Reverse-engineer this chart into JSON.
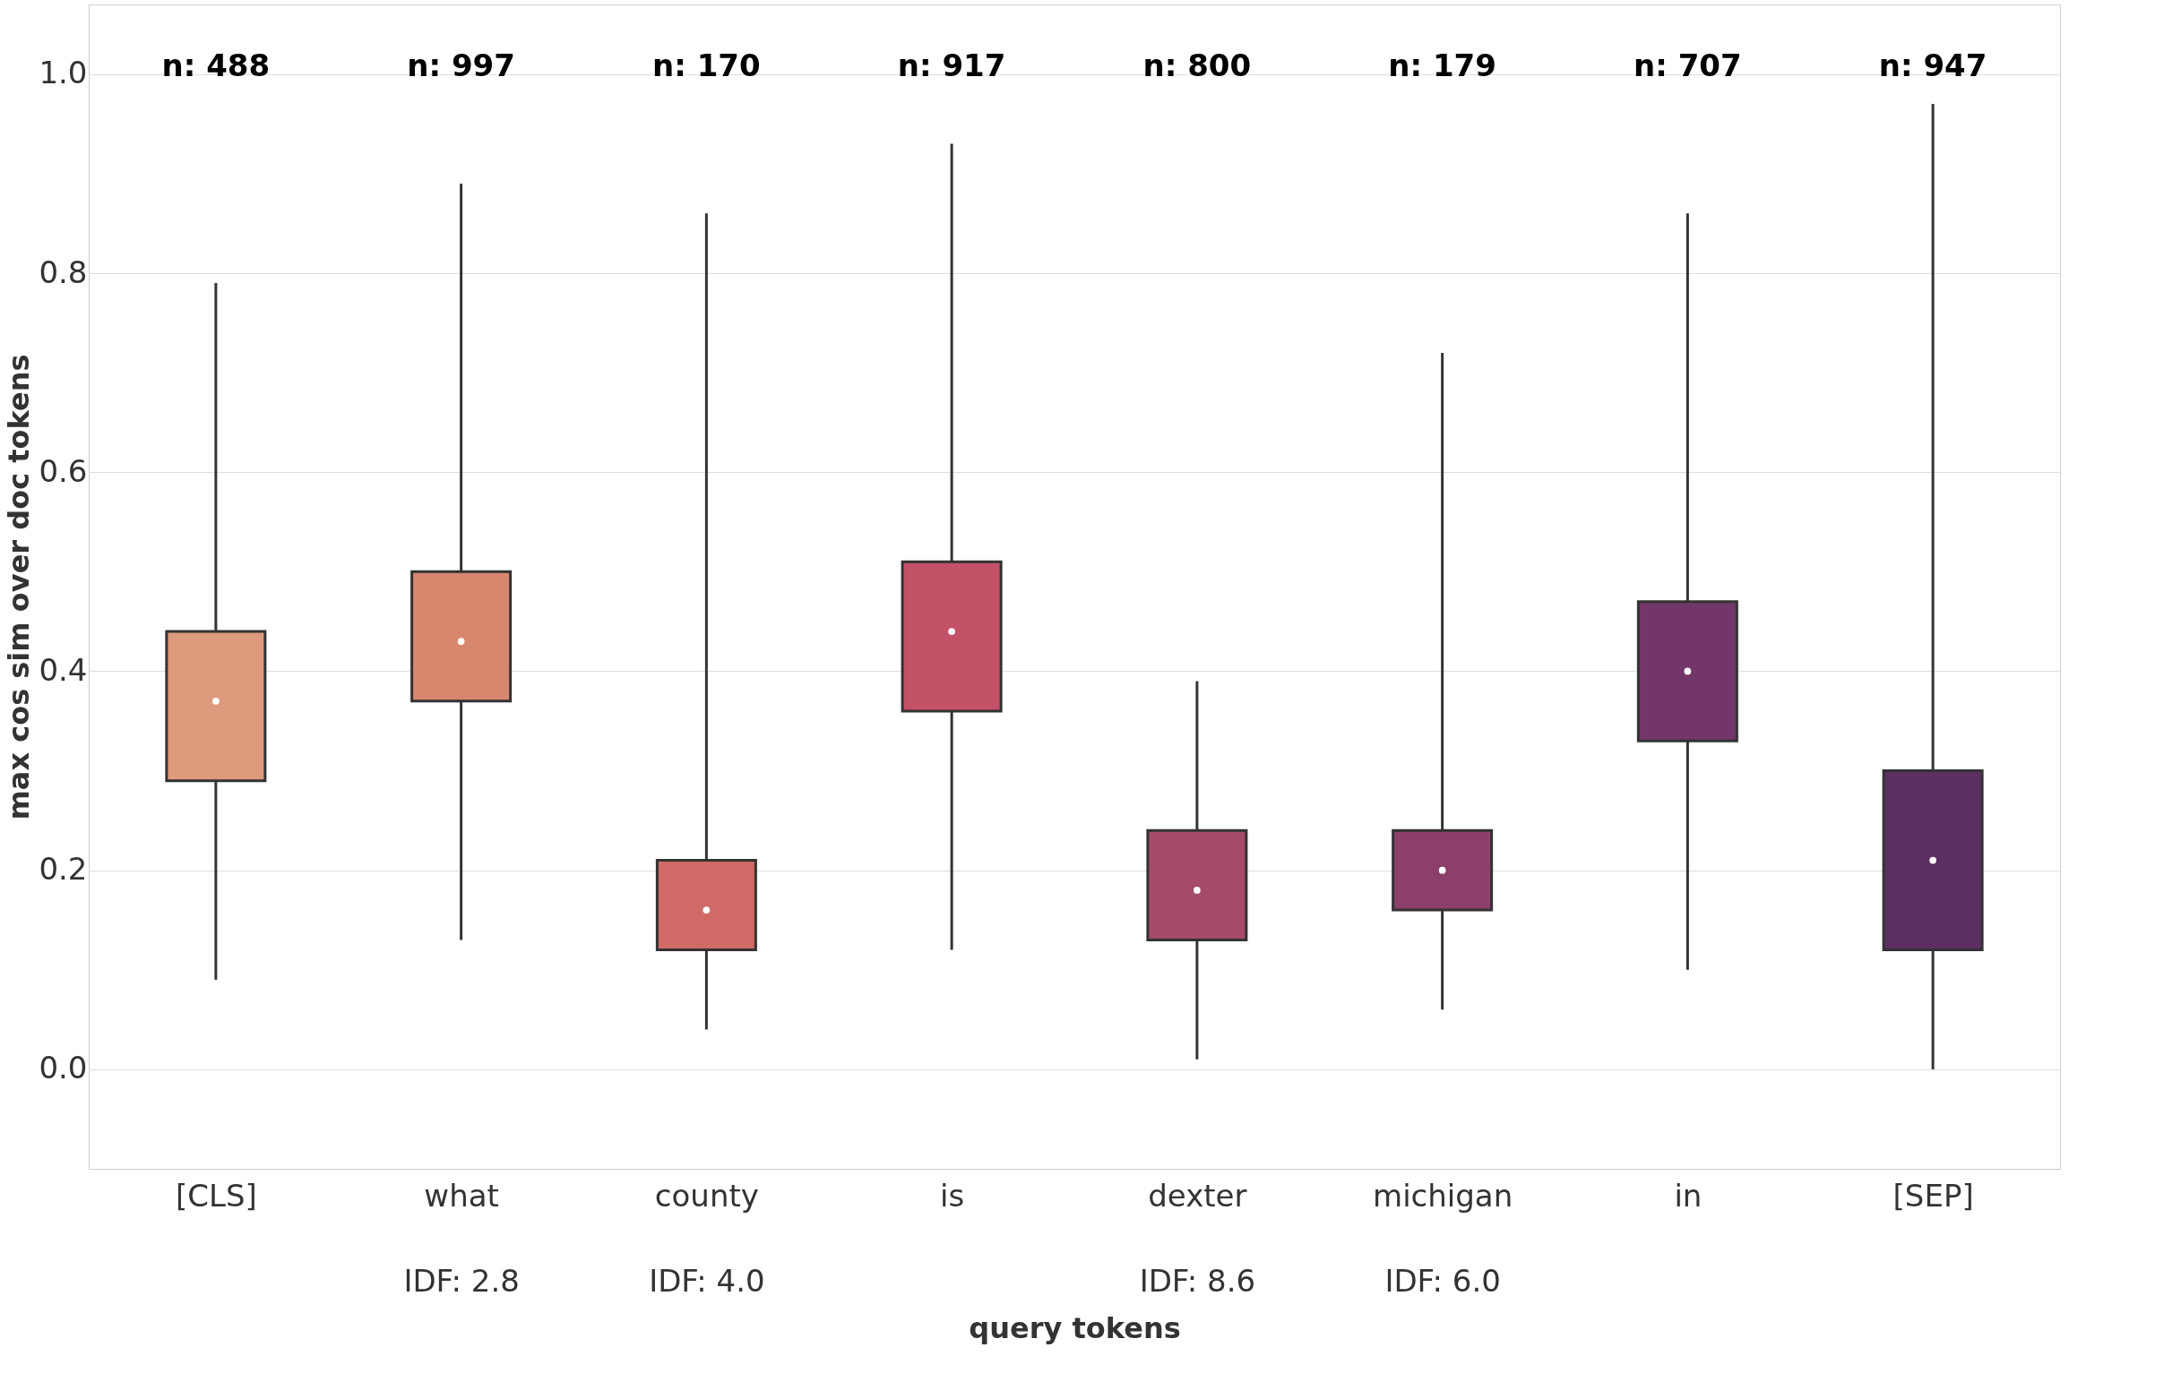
{
  "chart_data": {
    "type": "box",
    "xlabel": "query tokens",
    "ylabel": "max cos sim over doc tokens",
    "categories": [
      "[CLS]",
      "what\nIDF: 2.8",
      "county\nIDF: 4.0",
      "is",
      "dexter\nIDF: 8.6",
      "michigan\nIDF: 6.0",
      "in",
      "[SEP]"
    ],
    "colors": [
      "#dd9a7c",
      "#d8876f",
      "#d06a66",
      "#c35168",
      "#a54a6b",
      "#8c3f6a",
      "#73366a",
      "#5c2e62"
    ],
    "boxes": [
      {
        "low": 0.09,
        "q1": 0.29,
        "median": 0.37,
        "q3": 0.44,
        "high": 0.79
      },
      {
        "low": 0.13,
        "q1": 0.37,
        "median": 0.43,
        "q3": 0.5,
        "high": 0.89
      },
      {
        "low": 0.04,
        "q1": 0.12,
        "median": 0.16,
        "q3": 0.21,
        "high": 0.86
      },
      {
        "low": 0.12,
        "q1": 0.36,
        "median": 0.44,
        "q3": 0.51,
        "high": 0.93
      },
      {
        "low": 0.01,
        "q1": 0.13,
        "median": 0.18,
        "q3": 0.24,
        "high": 0.39
      },
      {
        "low": 0.06,
        "q1": 0.16,
        "median": 0.2,
        "q3": 0.24,
        "high": 0.72
      },
      {
        "low": 0.1,
        "q1": 0.33,
        "median": 0.4,
        "q3": 0.47,
        "high": 0.86
      },
      {
        "low": 0.0,
        "q1": 0.12,
        "median": 0.21,
        "q3": 0.3,
        "high": 0.97
      }
    ],
    "ylim": [
      -0.1,
      1.07
    ],
    "yticks": [
      {
        "value": 0,
        "label": "0.0"
      },
      0.2,
      0.4,
      0.6,
      0.8,
      {
        "value": 1,
        "label": "1.0"
      }
    ],
    "grid": "y",
    "annotations": [
      "n: 488",
      "n: 997",
      "n: 170",
      "n: 917",
      "n: 800",
      "n: 179",
      "n: 707",
      "n: 947"
    ]
  }
}
